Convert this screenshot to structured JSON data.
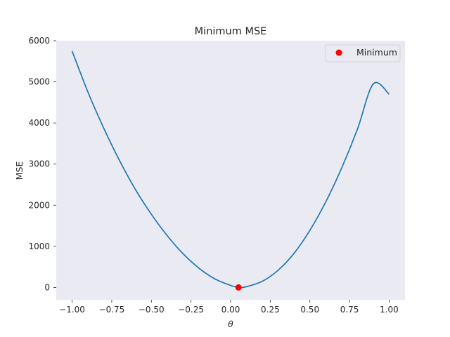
{
  "chart_data": {
    "type": "line",
    "title": "Minimum MSE",
    "xlabel": "θ",
    "ylabel": "MSE",
    "xlim": [
      -1.1,
      1.1
    ],
    "ylim": [
      -300,
      6000
    ],
    "xticks": [
      -1.0,
      -0.75,
      -0.5,
      -0.25,
      0.0,
      0.25,
      0.5,
      0.75,
      1.0
    ],
    "xtick_labels": [
      "−1.00",
      "−0.75",
      "−0.50",
      "−0.25",
      "0.00",
      "0.25",
      "0.50",
      "0.75",
      "1.00"
    ],
    "yticks": [
      0,
      1000,
      2000,
      3000,
      4000,
      5000,
      6000
    ],
    "ytick_labels": [
      "0",
      "1000",
      "2000",
      "3000",
      "4000",
      "5000",
      "6000"
    ],
    "grid": false,
    "background": "#eaeaf2",
    "series": [
      {
        "kind": "line",
        "color": "#1f77b4",
        "x": [
          -1.0,
          -0.9,
          -0.8,
          -0.7,
          -0.6,
          -0.5,
          -0.4,
          -0.3,
          -0.2,
          -0.1,
          0.0,
          0.05,
          0.1,
          0.2,
          0.3,
          0.4,
          0.5,
          0.6,
          0.7,
          0.8,
          0.9,
          1.0
        ],
        "y": [
          5750,
          4750,
          3870,
          3080,
          2380,
          1780,
          1260,
          820,
          470,
          210,
          50,
          0,
          20,
          150,
          420,
          830,
          1390,
          2080,
          2900,
          3850,
          4950,
          4700
        ]
      },
      {
        "kind": "point",
        "name": "Minimum",
        "color": "#ff0000",
        "x": [
          0.05
        ],
        "y": [
          0
        ]
      }
    ],
    "legend": {
      "position": "top-right",
      "entries": [
        "Minimum"
      ]
    }
  }
}
